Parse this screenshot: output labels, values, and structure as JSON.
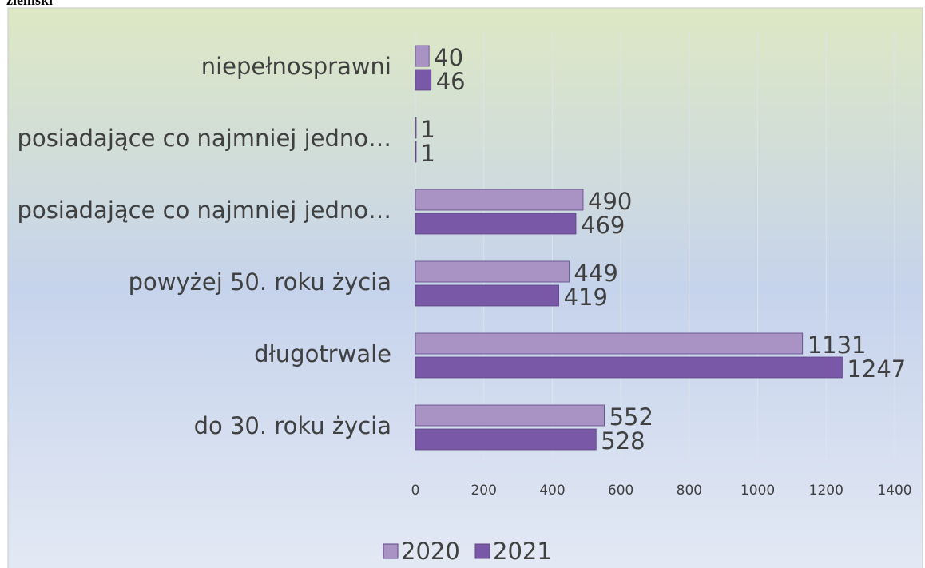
{
  "header": "ziemski",
  "chart_data": {
    "type": "bar",
    "orientation": "horizontal",
    "categories": [
      "niepełnosprawni",
      "posiadające co najmniej jedno…",
      "posiadające co najmniej jedno…",
      "powyżej 50. roku życia",
      "długotrwale",
      "do 30. roku życia"
    ],
    "series": [
      {
        "name": "2020",
        "color": "#a893c4",
        "values": [
          40,
          1,
          490,
          449,
          1131,
          552
        ]
      },
      {
        "name": "2021",
        "color": "#7a58a8",
        "values": [
          46,
          1,
          469,
          419,
          1247,
          528
        ]
      }
    ],
    "xlim": [
      0,
      1400
    ],
    "xticks": [
      0,
      200,
      400,
      600,
      800,
      1000,
      1200,
      1400
    ],
    "grid": true,
    "legend": "bottom"
  }
}
